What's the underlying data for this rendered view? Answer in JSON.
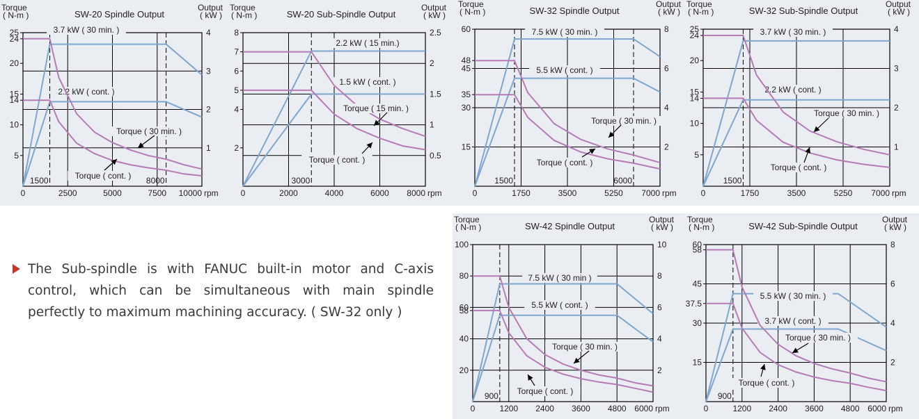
{
  "note": {
    "text": "The Sub-spindle is with FANUC built-in motor and C-axis control, which can be simultaneous with main spindle perfectly to maximum machining accuracy. ( SW-32 only )"
  },
  "colors": {
    "power": "#7ea6cf",
    "torque": "#b67bb4",
    "grid": "#000000",
    "background": "#eaeef3",
    "bullet": "#c0392b"
  },
  "chart_data": [
    {
      "type": "line",
      "title": "SW-20  Spindle Output",
      "left_axis_label": [
        "Torque",
        "( N-m )"
      ],
      "right_axis_label": [
        "Output",
        "( kW )"
      ],
      "x_unit": "rpm",
      "xlim": [
        0,
        10000
      ],
      "xticks": [
        0,
        2500,
        5000,
        7500,
        10000
      ],
      "x_vlines": [
        1500,
        8000
      ],
      "x_vline_labels": [
        "1500",
        "8000"
      ],
      "torque_ylim": [
        0,
        25
      ],
      "torque_ticks": [
        5,
        10,
        14,
        15,
        20,
        24,
        25
      ],
      "power_ylim": [
        0,
        4
      ],
      "power_ticks": [
        1,
        2,
        3,
        4
      ],
      "series": [
        {
          "name": "3.7 kW ( 30 min. )",
          "axis": "power",
          "x": [
            0,
            1500,
            8000,
            10000
          ],
          "y": [
            0,
            3.7,
            3.7,
            2.9
          ]
        },
        {
          "name": "2.2 kW ( cont. )",
          "axis": "power",
          "x": [
            0,
            1500,
            8000,
            10000
          ],
          "y": [
            0,
            2.2,
            2.2,
            1.8
          ]
        },
        {
          "name": "Torque ( 30 min. )",
          "axis": "torque",
          "x": [
            0,
            1500,
            2000,
            3000,
            4000,
            5000,
            6000,
            7000,
            8000,
            9000,
            10000
          ],
          "y": [
            24,
            24,
            17.7,
            11.8,
            8.8,
            7.1,
            5.9,
            5.0,
            4.4,
            3.5,
            2.8
          ]
        },
        {
          "name": "Torque ( cont. )",
          "axis": "torque",
          "x": [
            0,
            1500,
            2000,
            3000,
            4000,
            5000,
            6000,
            7000,
            8000,
            9000,
            10000
          ],
          "y": [
            14,
            14,
            10.5,
            7.0,
            5.3,
            4.2,
            3.5,
            3.0,
            2.6,
            2.0,
            1.7
          ]
        }
      ]
    },
    {
      "type": "line",
      "title": "SW-20  Sub-Spindle Output",
      "left_axis_label": [
        "Torque",
        "( N-m )"
      ],
      "right_axis_label": [
        "Output",
        "( kW )"
      ],
      "x_unit": "rpm",
      "xlim": [
        0,
        8000
      ],
      "xticks": [
        0,
        2000,
        4000,
        6000,
        8000
      ],
      "x_vlines": [
        3000
      ],
      "x_vline_labels": [
        "3000"
      ],
      "torque_ylim": [
        0,
        8
      ],
      "torque_ticks": [
        2,
        4,
        5,
        6,
        7,
        8
      ],
      "power_ylim": [
        0,
        2.5
      ],
      "power_ticks": [
        0.5,
        1,
        1.5,
        2,
        2.5
      ],
      "series": [
        {
          "name": "2.2 kW ( 15 min.)",
          "axis": "power",
          "x": [
            0,
            3000,
            8000
          ],
          "y": [
            0,
            2.2,
            2.2
          ]
        },
        {
          "name": "1.5 kW ( cont. )",
          "axis": "power",
          "x": [
            0,
            3000,
            8000
          ],
          "y": [
            0,
            1.5,
            1.5
          ]
        },
        {
          "name": "Torque ( 15 min. )",
          "axis": "torque",
          "x": [
            0,
            3000,
            4000,
            5000,
            6000,
            7000,
            8000
          ],
          "y": [
            7,
            7,
            5.25,
            4.2,
            3.5,
            3.0,
            2.6
          ]
        },
        {
          "name": "Torque ( cont. )",
          "axis": "torque",
          "x": [
            0,
            3000,
            4000,
            5000,
            6000,
            7000,
            8000
          ],
          "y": [
            5,
            5,
            3.75,
            3.0,
            2.5,
            2.1,
            1.9
          ]
        }
      ]
    },
    {
      "type": "line",
      "title": "SW-32  Spindle Output",
      "left_axis_label": [
        "Torque",
        "( N-m )"
      ],
      "right_axis_label": [
        "Output",
        "( kW )"
      ],
      "x_unit": "rpm",
      "xlim": [
        0,
        7000
      ],
      "xticks": [
        0,
        1750,
        3500,
        5250,
        7000
      ],
      "x_vlines": [
        1500,
        6000
      ],
      "x_vline_labels": [
        "1500",
        "6000"
      ],
      "torque_ylim": [
        0,
        60
      ],
      "torque_ticks": [
        15,
        30,
        35,
        45,
        48,
        60
      ],
      "power_ylim": [
        0,
        8
      ],
      "power_ticks": [
        2,
        4,
        6,
        8
      ],
      "series": [
        {
          "name": "7.5 kW ( 30 min. )",
          "axis": "power",
          "x": [
            0,
            1500,
            6000,
            7000
          ],
          "y": [
            0,
            7.5,
            7.5,
            6.6
          ]
        },
        {
          "name": "5.5 kW ( cont. )",
          "axis": "power",
          "x": [
            0,
            1500,
            6000,
            7000
          ],
          "y": [
            0,
            5.5,
            5.5,
            4.8
          ]
        },
        {
          "name": "Torque ( 30 min. )",
          "axis": "torque",
          "x": [
            0,
            1500,
            2000,
            3000,
            4000,
            5000,
            6000,
            7000
          ],
          "y": [
            48,
            48,
            35.8,
            23.9,
            17.9,
            14.3,
            11.9,
            9.0
          ]
        },
        {
          "name": "Torque ( cont. )",
          "axis": "torque",
          "x": [
            0,
            1500,
            2000,
            3000,
            4000,
            5000,
            6000,
            7000
          ],
          "y": [
            35,
            35,
            26.3,
            17.5,
            13.1,
            10.5,
            8.8,
            6.6
          ]
        }
      ]
    },
    {
      "type": "line",
      "title": "SW-32  Sub-Spindle Output",
      "left_axis_label": [
        "Torque",
        "( N-m )"
      ],
      "right_axis_label": [
        "Output",
        "( kW )"
      ],
      "x_unit": "rpm",
      "xlim": [
        0,
        7000
      ],
      "xticks": [
        0,
        1750,
        3500,
        5250,
        7000
      ],
      "x_vlines": [
        1500
      ],
      "x_vline_labels": [
        "1500"
      ],
      "torque_ylim": [
        0,
        25
      ],
      "torque_ticks": [
        5,
        10,
        14,
        15,
        20,
        24,
        25
      ],
      "power_ylim": [
        0,
        4
      ],
      "power_ticks": [
        1,
        2,
        3,
        4
      ],
      "series": [
        {
          "name": "3.7 kW ( 30 min. )",
          "axis": "power",
          "x": [
            0,
            1500,
            7000
          ],
          "y": [
            0,
            3.7,
            3.7
          ]
        },
        {
          "name": "2.2 kW ( cont. )",
          "axis": "power",
          "x": [
            0,
            1500,
            7000
          ],
          "y": [
            0,
            2.2,
            2.2
          ]
        },
        {
          "name": "Torque ( 30 min. )",
          "axis": "torque",
          "x": [
            0,
            1500,
            2000,
            3000,
            4000,
            5000,
            6000,
            7000
          ],
          "y": [
            24,
            24,
            17.7,
            11.8,
            8.8,
            7.1,
            5.9,
            5.0
          ]
        },
        {
          "name": "Torque ( cont. )",
          "axis": "torque",
          "x": [
            0,
            1500,
            2000,
            3000,
            4000,
            5000,
            6000,
            7000
          ],
          "y": [
            14,
            14,
            10.5,
            7.0,
            5.3,
            4.2,
            3.5,
            3.0
          ]
        }
      ]
    },
    {
      "type": "line",
      "title": "SW-42 Spindle Output",
      "left_axis_label": [
        "Torque",
        "( N-m )"
      ],
      "right_axis_label": [
        "Output",
        "( kW )"
      ],
      "x_unit": "rpm",
      "xlim": [
        0,
        6000
      ],
      "xticks": [
        0,
        1200,
        2400,
        3600,
        4800,
        6000
      ],
      "x_vlines": [
        900
      ],
      "x_vline_labels": [
        "900"
      ],
      "torque_ylim": [
        0,
        100
      ],
      "torque_ticks": [
        20,
        40,
        58,
        60,
        80,
        100
      ],
      "power_ylim": [
        0,
        10
      ],
      "power_ticks": [
        2,
        4,
        6,
        8,
        10
      ],
      "series": [
        {
          "name": "7.5 kW ( 30 min )",
          "axis": "power",
          "x": [
            0,
            900,
            4800,
            6000
          ],
          "y": [
            0,
            7.5,
            7.5,
            5.6
          ]
        },
        {
          "name": "5.5 kW ( cont. )",
          "axis": "power",
          "x": [
            0,
            900,
            4800,
            6000
          ],
          "y": [
            0,
            5.5,
            5.5,
            3.8
          ]
        },
        {
          "name": "Torque ( 30 min. )",
          "axis": "torque",
          "x": [
            0,
            900,
            1200,
            1800,
            2400,
            3000,
            3600,
            4200,
            4800,
            5400,
            6000
          ],
          "y": [
            80,
            80,
            60,
            40,
            30,
            24,
            20,
            17,
            15,
            12,
            10
          ]
        },
        {
          "name": "Torque ( cont. )",
          "axis": "torque",
          "x": [
            0,
            900,
            1200,
            1800,
            2400,
            3000,
            3600,
            4200,
            4800,
            5400,
            6000
          ],
          "y": [
            58,
            58,
            43.8,
            29.2,
            21.9,
            17.5,
            14.6,
            12.5,
            10.9,
            8.5,
            6.0
          ]
        }
      ]
    },
    {
      "type": "line",
      "title": "SW-42 Sub-Spindle Output",
      "left_axis_label": [
        "Torque",
        "( N-m )"
      ],
      "right_axis_label": [
        "Output",
        "( kW )"
      ],
      "x_unit": "rpm",
      "xlim": [
        0,
        6000
      ],
      "xticks": [
        0,
        1200,
        2400,
        3600,
        4800,
        6000
      ],
      "x_vlines": [
        900
      ],
      "x_vline_labels": [
        "900"
      ],
      "torque_ylim": [
        0,
        60
      ],
      "torque_ticks": [
        15,
        30,
        37.5,
        45,
        58,
        60
      ],
      "power_ylim": [
        0,
        8
      ],
      "power_ticks": [
        2,
        4,
        6,
        8
      ],
      "series": [
        {
          "name": "5.5 kW ( 30 min. )",
          "axis": "power",
          "x": [
            0,
            900,
            4400,
            6000
          ],
          "y": [
            0,
            5.5,
            5.5,
            3.8
          ]
        },
        {
          "name": "3.7 kW ( cont. )",
          "axis": "power",
          "x": [
            0,
            900,
            4400,
            6000
          ],
          "y": [
            0,
            3.7,
            3.7,
            2.6
          ]
        },
        {
          "name": "Torque ( 30 min. )",
          "axis": "torque",
          "x": [
            0,
            900,
            1200,
            1800,
            2400,
            3000,
            3600,
            4200,
            4800,
            5400,
            6000
          ],
          "y": [
            58,
            58,
            43.8,
            29.2,
            21.9,
            17.5,
            14.6,
            12.5,
            10.9,
            9.0,
            7.6
          ]
        },
        {
          "name": "Torque ( cont. )",
          "axis": "torque",
          "x": [
            0,
            900,
            1200,
            1800,
            2400,
            3000,
            3600,
            4200,
            4800,
            5400,
            6000
          ],
          "y": [
            37.5,
            37.5,
            28.1,
            18.8,
            14.1,
            11.3,
            9.4,
            8.0,
            7.0,
            5.5,
            4.2
          ]
        }
      ]
    }
  ]
}
